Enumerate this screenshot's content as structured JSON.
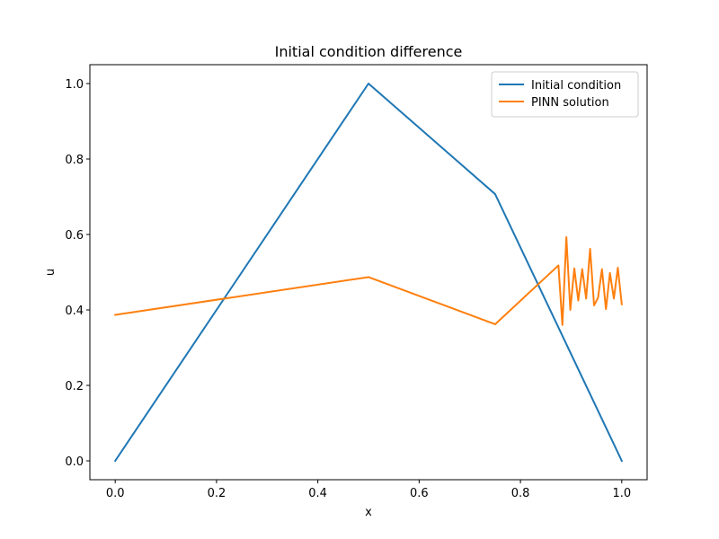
{
  "chart_data": {
    "type": "line",
    "title": "Initial condition difference",
    "xlabel": "x",
    "ylabel": "u",
    "xlim": [
      -0.05,
      1.05
    ],
    "ylim": [
      -0.05,
      1.05
    ],
    "xticks": [
      0.0,
      0.2,
      0.4,
      0.6,
      0.8,
      1.0
    ],
    "xtick_labels": [
      "0.0",
      "0.2",
      "0.4",
      "0.6",
      "0.8",
      "1.0"
    ],
    "yticks": [
      0.0,
      0.2,
      0.4,
      0.6,
      0.8,
      1.0
    ],
    "ytick_labels": [
      "0.0",
      "0.2",
      "0.4",
      "0.6",
      "0.8",
      "1.0"
    ],
    "grid": false,
    "legend_position": "top-right",
    "series": [
      {
        "name": "Initial condition",
        "color": "#1f77b4",
        "x": [
          0.0,
          0.5,
          0.75,
          1.0
        ],
        "y": [
          0.0,
          1.0,
          0.707,
          0.0
        ]
      },
      {
        "name": "PINN solution",
        "color": "#ff7f0e",
        "x": [
          0.0,
          0.5,
          0.75,
          0.875,
          0.8828,
          0.8906,
          0.8984,
          0.9063,
          0.9141,
          0.9219,
          0.9297,
          0.9375,
          0.9453,
          0.9531,
          0.9609,
          0.9688,
          0.9766,
          0.9844,
          0.9922,
          1.0
        ],
        "y": [
          0.387,
          0.487,
          0.362,
          0.518,
          0.36,
          0.593,
          0.4,
          0.51,
          0.425,
          0.508,
          0.43,
          0.562,
          0.412,
          0.432,
          0.508,
          0.402,
          0.498,
          0.43,
          0.512,
          0.415
        ]
      }
    ]
  }
}
